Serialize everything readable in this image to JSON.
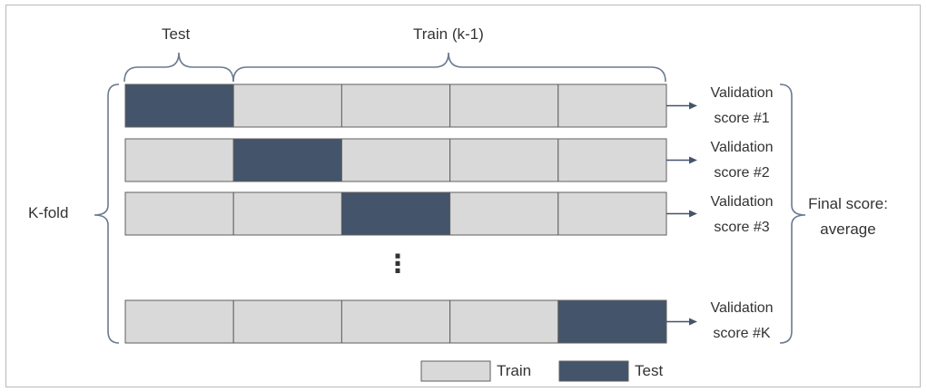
{
  "header": {
    "test_label": "Test",
    "train_label": "Train (k-1)"
  },
  "left_label": "K-fold",
  "right_label": {
    "line1": "Final score:",
    "line2": "average"
  },
  "rows": [
    {
      "test_fold": 1,
      "score_line1": "Validation",
      "score_line2": "score #1"
    },
    {
      "test_fold": 2,
      "score_line1": "Validation",
      "score_line2": "score #2"
    },
    {
      "test_fold": 3,
      "score_line1": "Validation",
      "score_line2": "score #3"
    },
    {
      "test_fold": 5,
      "score_line1": "Validation",
      "score_line2": "score #K"
    }
  ],
  "folds_per_row": 5,
  "ellipsis": "⋮",
  "legend": {
    "train_label": "Train",
    "test_label": "Test"
  },
  "colors": {
    "train": "#d9d9d9",
    "test": "#44546a",
    "cell_border": "#5f5f5f",
    "line": "#6b7a8f",
    "arrow": "#44546a"
  }
}
